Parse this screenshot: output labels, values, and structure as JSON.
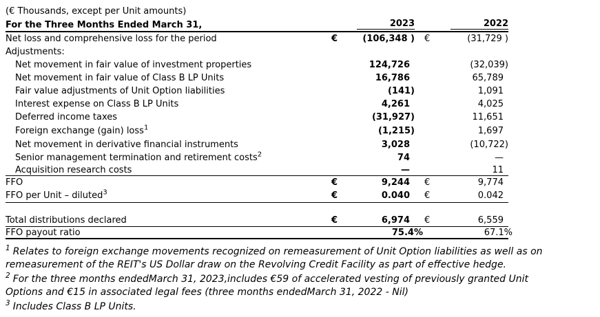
{
  "table": {
    "caption": "(€ Thousands, except per Unit amounts)",
    "header_label": "For the Three Months Ended March 31,",
    "columns": [
      "2023",
      "2022"
    ],
    "currency_symbol": "€",
    "rows": [
      {
        "label": "Net loss and comprehensive loss for the period",
        "cur2023": "€",
        "v2023": "(106,348 )",
        "cur2022": "€",
        "v2022": "(31,729 )"
      },
      {
        "label": "Adjustments:"
      },
      {
        "label": "Net movement in fair value of investment properties",
        "indent": true,
        "v2023": "124,726",
        "v2022": "(32,039)"
      },
      {
        "label": "Net movement in fair value of Class B LP Units",
        "indent": true,
        "v2023": "16,786",
        "v2022": "65,789"
      },
      {
        "label": "Fair value adjustments of Unit Option liabilities",
        "indent": true,
        "v2023": "(141)",
        "v2022": "1,091"
      },
      {
        "label": "Interest expense on Class B LP Units",
        "indent": true,
        "v2023": "4,261",
        "v2022": "4,025"
      },
      {
        "label": "Deferred income taxes",
        "indent": true,
        "v2023": "(31,927)",
        "v2022": "11,651"
      },
      {
        "label": "Foreign exchange (gain) loss",
        "sup": "1",
        "indent": true,
        "v2023": "(1,215)",
        "v2022": "1,697"
      },
      {
        "label": "Net movement in derivative financial instruments",
        "indent": true,
        "v2023": "3,028",
        "v2022": "(10,722)"
      },
      {
        "label": "Senior management termination and retirement costs",
        "sup": "2",
        "indent": true,
        "v2023": "74",
        "v2022": "—"
      },
      {
        "label": "Acquisition research costs",
        "indent": true,
        "v2023": "—",
        "v2022": "11"
      },
      {
        "label": "FFO",
        "cur2023": "€",
        "v2023": "9,244",
        "cur2022": "€",
        "v2022": "9,774"
      },
      {
        "label": "FFO per Unit – diluted",
        "sup": "3",
        "cur2023": "€",
        "v2023": "0.040",
        "cur2022": "€",
        "v2022": "0.042"
      },
      {
        "spacer": true
      },
      {
        "label": "Total distributions declared",
        "cur2023": "€",
        "v2023": "6,974",
        "cur2022": "€",
        "v2022": "6,559"
      },
      {
        "label": "FFO payout ratio",
        "v2023": "75.4%",
        "v2022": "67.1%"
      }
    ]
  },
  "footnotes": [
    {
      "sup": "1",
      "text": "Relates to foreign exchange movements recognized on remeasurement of Unit Option liabilities as well as on\nremeasurement of the REIT's US Dollar draw on the Revolving Credit Facility as part of effective hedge."
    },
    {
      "sup": "2",
      "text": "For the three months endedMarch 31, 2023,includes €59 of accelerated vesting of previously granted Unit\nOptions and €15 in associated legal fees (three months endedMarch 31, 2022 - Nil)"
    },
    {
      "sup": "3",
      "text": "Includes Class B LP Units."
    }
  ]
}
